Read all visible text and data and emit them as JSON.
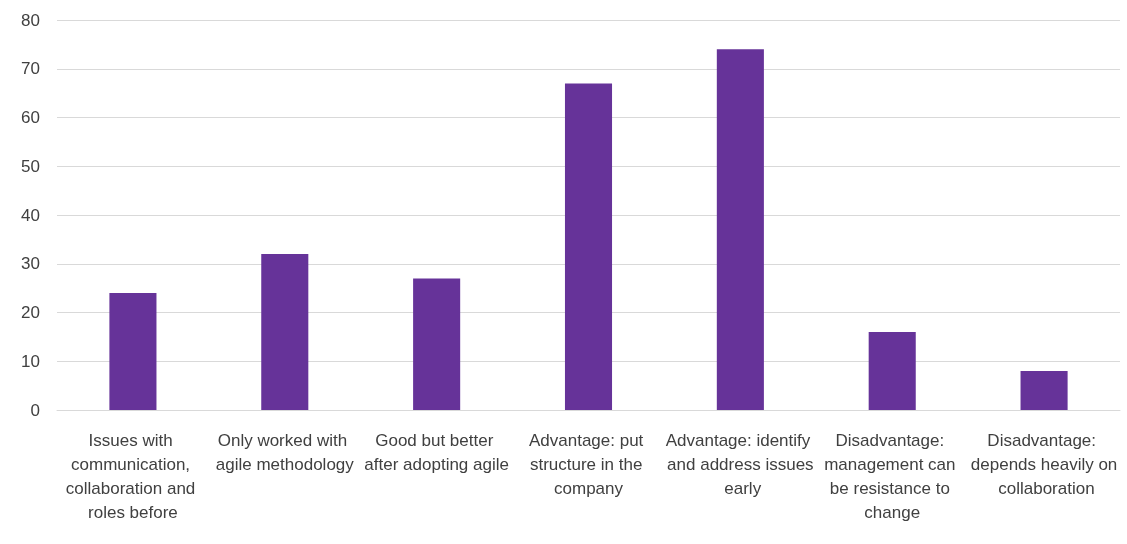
{
  "chart_data": {
    "type": "bar",
    "categories": [
      "Issues with communication, collaboration and roles before",
      "Only worked with agile methodology",
      "Good but better after adopting agile",
      "Advantage: put structure in the company",
      "Advantage: identify and address issues early",
      "Disadvantage: management can be resistance to change",
      "Disadvantage: depends heavily on collaboration"
    ],
    "values": [
      24,
      32,
      27,
      67,
      74,
      16,
      8
    ],
    "color": "#663399",
    "ylim": [
      0,
      80
    ],
    "yticks": [
      0,
      10,
      20,
      30,
      40,
      50,
      60,
      70,
      80
    ],
    "grid": "y"
  }
}
